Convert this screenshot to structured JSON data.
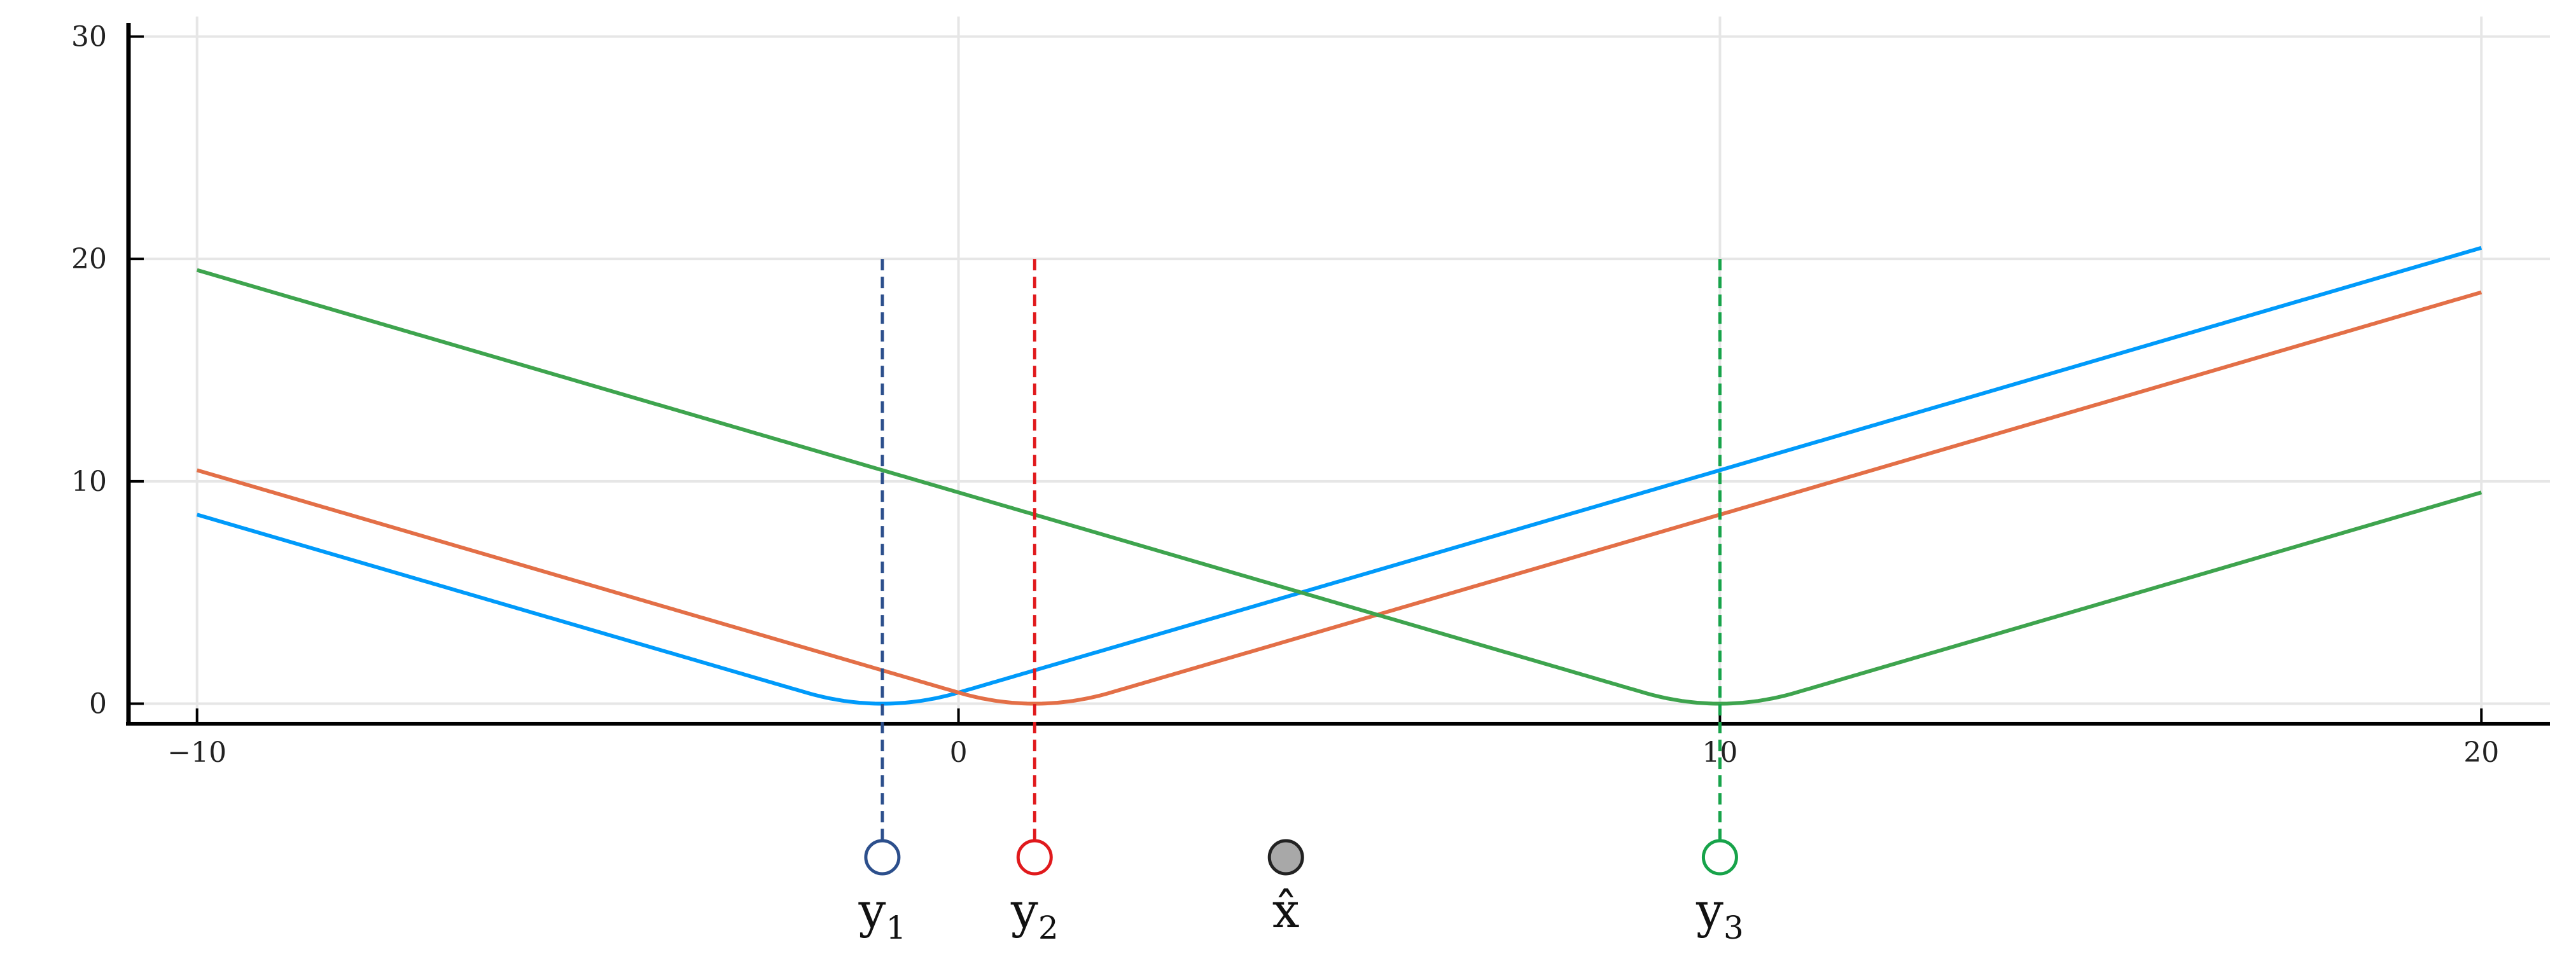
{
  "chart_data": {
    "type": "line",
    "title": "",
    "xlabel": "",
    "ylabel": "",
    "xlim": [
      -10.9,
      20.9
    ],
    "ylim": [
      -0.9,
      30.9
    ],
    "grid": true,
    "xticks": [
      -10,
      0,
      10,
      20
    ],
    "yticks": [
      0,
      10,
      20,
      30
    ],
    "xtick_labels": [
      "−10",
      "0",
      "10",
      "20"
    ],
    "ytick_labels": [
      "0",
      "10",
      "20",
      "30"
    ],
    "series": [
      {
        "color": "#009AFA",
        "center": -1,
        "slope": 1,
        "smoothing": 1,
        "x": [
          -10,
          -1,
          0,
          10,
          20
        ],
        "y": [
          8.5,
          0,
          0.5,
          10.5,
          20.5
        ]
      },
      {
        "color": "#E36F47",
        "center": 1,
        "slope": 1,
        "smoothing": 1,
        "x": [
          -10,
          1,
          10,
          20
        ],
        "y": [
          10.5,
          0,
          8.5,
          18.5
        ]
      },
      {
        "color": "#3EA44E",
        "center": 10,
        "slope": 1,
        "smoothing": 1,
        "x": [
          -10,
          0,
          10,
          20
        ],
        "y": [
          19.5,
          9.5,
          0,
          9.5
        ]
      }
    ],
    "markers": [
      {
        "label": "y",
        "subscript": "1",
        "x": -1,
        "color": "#2C4F8C",
        "fill": "#ffffff",
        "dashed_line": true
      },
      {
        "label": "y",
        "subscript": "2",
        "x": 1,
        "color": "#E0191C",
        "fill": "#ffffff",
        "dashed_line": true
      },
      {
        "label": "x̂",
        "subscript": "",
        "x": 4.3,
        "color": "#222222",
        "fill": "#A8A8A8",
        "dashed_line": false
      },
      {
        "label": "y",
        "subscript": "3",
        "x": 10,
        "color": "#17A34A",
        "fill": "#ffffff",
        "dashed_line": true
      }
    ]
  }
}
